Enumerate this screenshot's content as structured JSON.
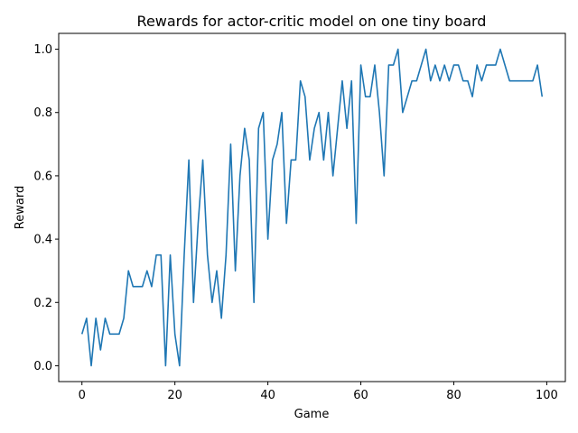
{
  "chart_data": {
    "type": "line",
    "title": "Rewards for actor-critic model on one tiny board",
    "xlabel": "Game",
    "ylabel": "Reward",
    "xlim": [
      -5,
      104
    ],
    "ylim": [
      -0.05,
      1.05
    ],
    "x_ticks": [
      0,
      20,
      40,
      60,
      80,
      100
    ],
    "x_tick_labels": [
      "0",
      "20",
      "40",
      "60",
      "80",
      "100"
    ],
    "y_ticks": [
      0.0,
      0.2,
      0.4,
      0.6,
      0.8,
      1.0
    ],
    "y_tick_labels": [
      "0.0",
      "0.2",
      "0.4",
      "0.6",
      "0.8",
      "1.0"
    ],
    "grid": false,
    "series": [
      {
        "color": "#1f77b4",
        "x": [
          0,
          1,
          2,
          3,
          4,
          5,
          6,
          7,
          8,
          9,
          10,
          11,
          12,
          13,
          14,
          15,
          16,
          17,
          18,
          19,
          20,
          21,
          22,
          23,
          24,
          25,
          26,
          27,
          28,
          29,
          30,
          31,
          32,
          33,
          34,
          35,
          36,
          37,
          38,
          39,
          40,
          41,
          42,
          43,
          44,
          45,
          46,
          47,
          48,
          49,
          50,
          51,
          52,
          53,
          54,
          55,
          56,
          57,
          58,
          59,
          60,
          61,
          62,
          63,
          64,
          65,
          66,
          67,
          68,
          69,
          70,
          71,
          72,
          73,
          74,
          75,
          76,
          77,
          78,
          79,
          80,
          81,
          82,
          83,
          84,
          85,
          86,
          87,
          88,
          89,
          90,
          91,
          92,
          93,
          94,
          95,
          96,
          97,
          98,
          99
        ],
        "y": [
          0.1,
          0.15,
          0.0,
          0.15,
          0.05,
          0.15,
          0.1,
          0.1,
          0.1,
          0.15,
          0.3,
          0.25,
          0.25,
          0.25,
          0.3,
          0.25,
          0.35,
          0.35,
          0.0,
          0.35,
          0.1,
          0.0,
          0.35,
          0.65,
          0.2,
          0.45,
          0.65,
          0.35,
          0.2,
          0.3,
          0.15,
          0.35,
          0.7,
          0.3,
          0.6,
          0.75,
          0.65,
          0.2,
          0.75,
          0.8,
          0.4,
          0.65,
          0.7,
          0.8,
          0.45,
          0.65,
          0.65,
          0.9,
          0.85,
          0.65,
          0.75,
          0.8,
          0.65,
          0.8,
          0.6,
          0.75,
          0.9,
          0.75,
          0.9,
          0.45,
          0.95,
          0.85,
          0.85,
          0.95,
          0.8,
          0.6,
          0.95,
          0.95,
          1.0,
          0.8,
          0.85,
          0.9,
          0.9,
          0.95,
          1.0,
          0.9,
          0.95,
          0.9,
          0.95,
          0.9,
          0.95,
          0.95,
          0.9,
          0.9,
          0.85,
          0.95,
          0.9,
          0.95,
          0.95,
          0.95,
          1.0,
          0.95,
          0.9,
          0.9,
          0.9,
          0.9,
          0.9,
          0.9,
          0.95,
          0.85
        ]
      }
    ]
  }
}
